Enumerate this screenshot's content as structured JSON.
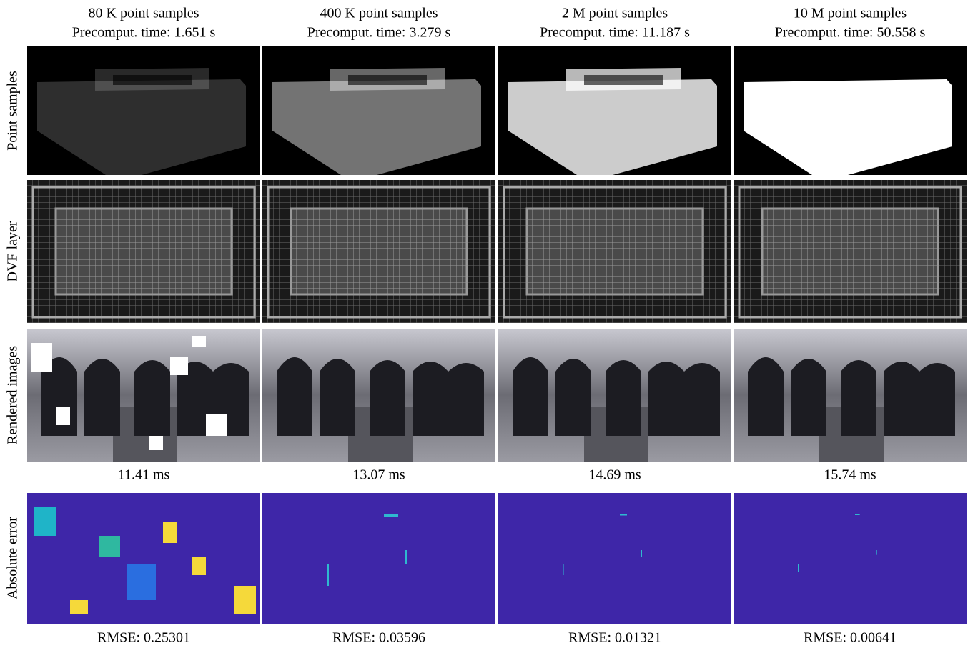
{
  "columns": [
    {
      "title": "80 K point samples",
      "subtitle": "Precomput. time: 1.651 s",
      "render_time": "11.41 ms",
      "rmse": "RMSE: 0.25301"
    },
    {
      "title": "400 K point samples",
      "subtitle": "Precomput. time: 3.279 s",
      "render_time": "13.07 ms",
      "rmse": "RMSE: 0.03596"
    },
    {
      "title": "2 M point samples",
      "subtitle": "Precomput. time: 11.187 s",
      "render_time": "14.69 ms",
      "rmse": "RMSE: 0.01321"
    },
    {
      "title": "10 M point samples",
      "subtitle": "Precomput. time: 50.558 s",
      "render_time": "15.74 ms",
      "rmse": "RMSE: 0.00641"
    }
  ],
  "row_labels": [
    "Point samples",
    "DVF layer",
    "Rendered images",
    "Absolute error"
  ]
}
